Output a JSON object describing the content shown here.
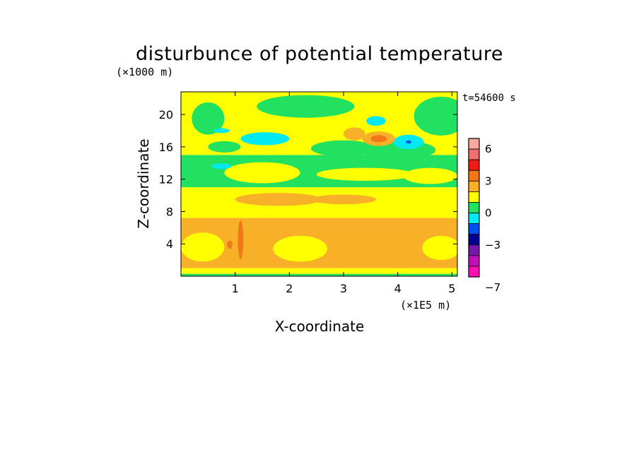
{
  "chart_data": {
    "type": "heatmap",
    "title": "disturbunce of potential temperature",
    "xlabel": "X-coordinate",
    "ylabel": "Z-coordinate",
    "x_unit": "(×1E5 m)",
    "y_unit": "(×1000 m)",
    "time_label": "t=54600 s",
    "xlim": [
      0,
      5.1
    ],
    "ylim": [
      0,
      22.8
    ],
    "x_ticks": [
      1,
      2,
      3,
      4,
      5
    ],
    "x_tick_labels": [
      "1",
      "2",
      "3",
      "4",
      "5"
    ],
    "y_ticks": [
      4,
      8,
      12,
      16,
      20
    ],
    "y_tick_labels": [
      "4",
      "8",
      "12",
      "16",
      "20"
    ],
    "colorbar": {
      "tick_values": [
        6,
        3,
        0,
        -3,
        -7
      ],
      "tick_labels": [
        "6",
        "3",
        "0",
        "−3",
        "−7"
      ],
      "levels": [
        {
          "color": "#f4a8a0"
        },
        {
          "color": "#f07070"
        },
        {
          "color": "#ee1c14"
        },
        {
          "color": "#f07818"
        },
        {
          "color": "#f8b028"
        },
        {
          "color": "#ffff00"
        },
        {
          "color": "#22e060"
        },
        {
          "color": "#00e8f0"
        },
        {
          "color": "#0050f0"
        },
        {
          "color": "#000090"
        },
        {
          "color": "#7818a8"
        },
        {
          "color": "#c010b8"
        },
        {
          "color": "#ff10b0"
        }
      ]
    },
    "bands": [
      {
        "z0": 0.0,
        "z1": 0.3,
        "color": "#22e060"
      },
      {
        "z0": 0.3,
        "z1": 1.0,
        "color": "#ffff00"
      },
      {
        "z0": 1.0,
        "z1": 5.8,
        "color": "#f8b028"
      },
      {
        "z0": 5.8,
        "z1": 7.2,
        "color": "#f8b028"
      },
      {
        "z0": 7.2,
        "z1": 11.0,
        "color": "#ffff00"
      },
      {
        "z0": 11.0,
        "z1": 15.0,
        "color": "#22e060"
      },
      {
        "z0": 15.0,
        "z1": 22.8,
        "color": "#ffff00"
      }
    ],
    "features": [
      {
        "x": 0.4,
        "z": 3.6,
        "rx": 0.4,
        "rz": 1.8,
        "color": "#ffff00"
      },
      {
        "x": 2.2,
        "z": 3.4,
        "rx": 0.5,
        "rz": 1.6,
        "color": "#ffff00"
      },
      {
        "x": 4.8,
        "z": 3.5,
        "rx": 0.35,
        "rz": 1.5,
        "color": "#ffff00"
      },
      {
        "x": 1.1,
        "z": 4.5,
        "rx": 0.05,
        "rz": 2.4,
        "color": "#f07818"
      },
      {
        "x": 0.9,
        "z": 3.9,
        "rx": 0.05,
        "rz": 0.5,
        "color": "#f07818"
      },
      {
        "x": 1.8,
        "z": 9.5,
        "rx": 0.8,
        "rz": 0.8,
        "color": "#f8b028"
      },
      {
        "x": 3.0,
        "z": 9.5,
        "rx": 0.6,
        "rz": 0.6,
        "color": "#f8b028"
      },
      {
        "x": 1.5,
        "z": 12.8,
        "rx": 0.7,
        "rz": 1.3,
        "color": "#ffff00"
      },
      {
        "x": 3.4,
        "z": 12.6,
        "rx": 0.9,
        "rz": 0.8,
        "color": "#ffff00"
      },
      {
        "x": 4.6,
        "z": 12.4,
        "rx": 0.5,
        "rz": 1.0,
        "color": "#ffff00"
      },
      {
        "x": 0.5,
        "z": 19.5,
        "rx": 0.3,
        "rz": 2.0,
        "color": "#22e060"
      },
      {
        "x": 2.3,
        "z": 21.0,
        "rx": 0.9,
        "rz": 1.4,
        "color": "#22e060"
      },
      {
        "x": 4.8,
        "z": 19.8,
        "rx": 0.5,
        "rz": 2.4,
        "color": "#22e060"
      },
      {
        "x": 3.0,
        "z": 15.8,
        "rx": 0.6,
        "rz": 1.0,
        "color": "#22e060"
      },
      {
        "x": 4.0,
        "z": 15.6,
        "rx": 0.7,
        "rz": 1.2,
        "color": "#22e060"
      },
      {
        "x": 0.8,
        "z": 16.0,
        "rx": 0.3,
        "rz": 0.7,
        "color": "#22e060"
      },
      {
        "x": 1.55,
        "z": 17.0,
        "rx": 0.45,
        "rz": 0.8,
        "color": "#00e8f0"
      },
      {
        "x": 0.75,
        "z": 13.6,
        "rx": 0.18,
        "rz": 0.35,
        "color": "#00e8f0"
      },
      {
        "x": 0.75,
        "z": 18.0,
        "rx": 0.15,
        "rz": 0.3,
        "color": "#00e8f0"
      },
      {
        "x": 3.6,
        "z": 19.2,
        "rx": 0.18,
        "rz": 0.6,
        "color": "#00e8f0"
      },
      {
        "x": 4.2,
        "z": 16.6,
        "rx": 0.28,
        "rz": 0.9,
        "color": "#00e8f0"
      },
      {
        "x": 3.2,
        "z": 17.6,
        "rx": 0.2,
        "rz": 0.8,
        "color": "#f8b028"
      },
      {
        "x": 3.65,
        "z": 17.0,
        "rx": 0.3,
        "rz": 0.9,
        "color": "#f8b028"
      },
      {
        "x": 3.65,
        "z": 17.0,
        "rx": 0.15,
        "rz": 0.45,
        "color": "#f07818"
      },
      {
        "x": 4.2,
        "z": 16.6,
        "rx": 0.05,
        "rz": 0.2,
        "color": "#0050f0"
      }
    ]
  }
}
